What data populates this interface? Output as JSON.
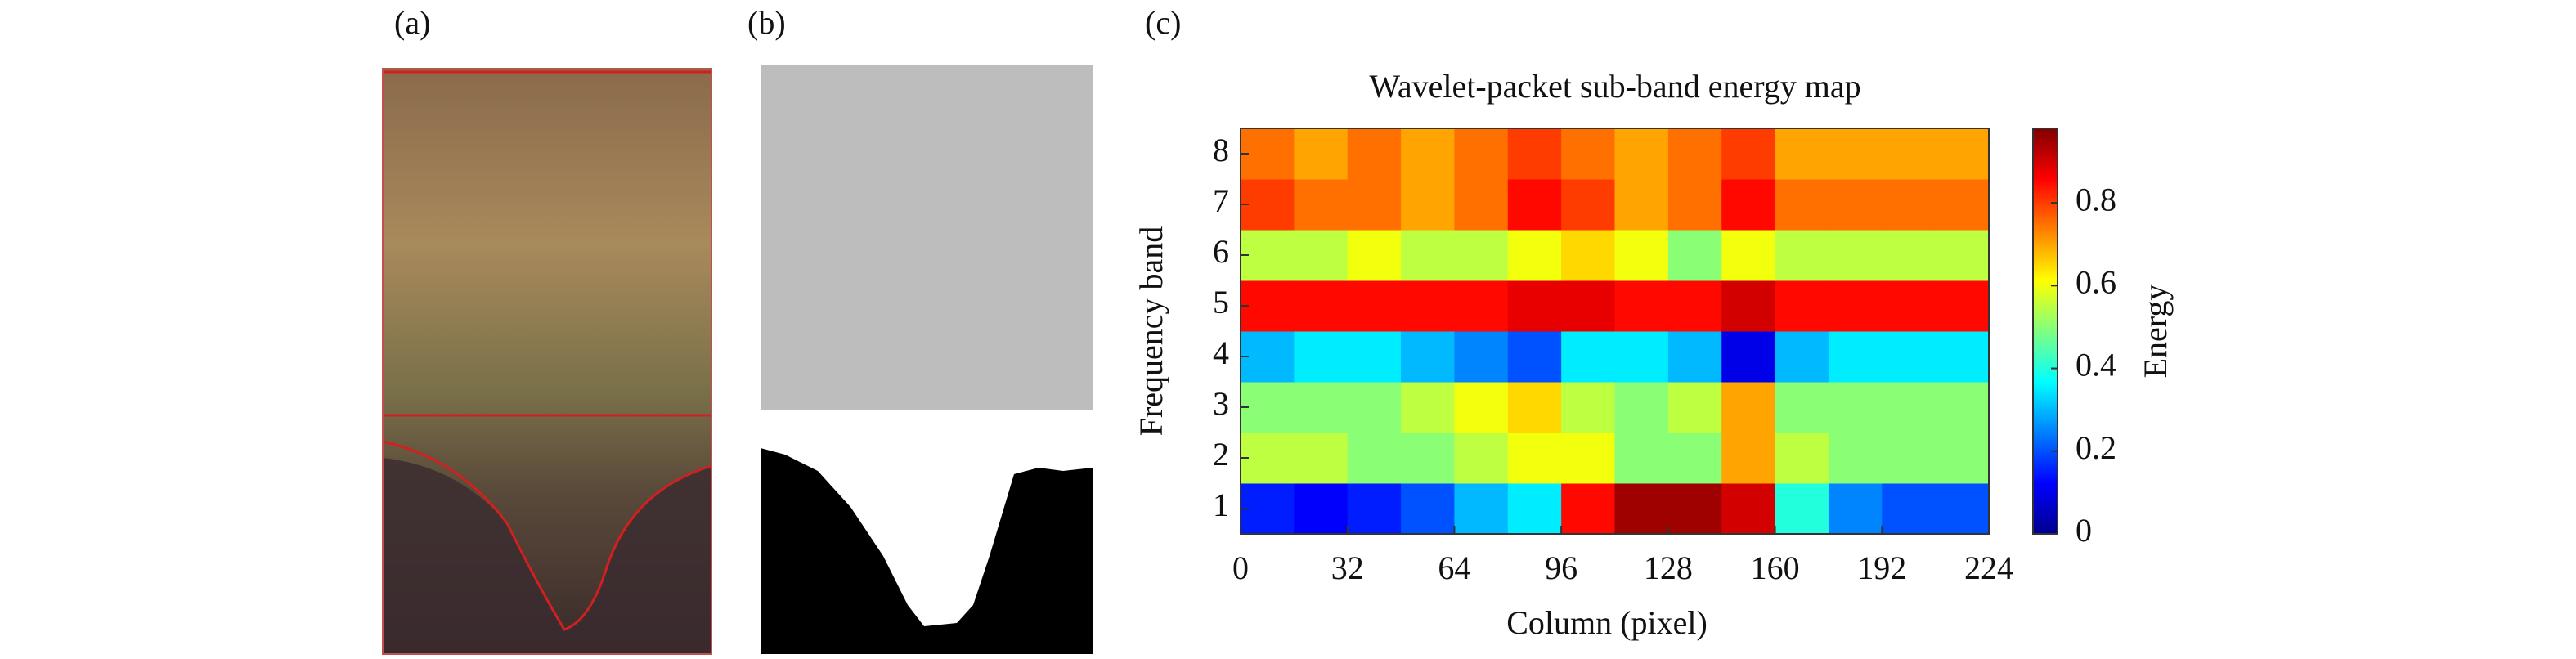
{
  "panel_labels": [
    "(a)",
    "(b)",
    "(c)"
  ],
  "chart_data": {
    "type": "heatmap",
    "title": "Wavelet-packet sub-band energy map",
    "x_label": "Column (pixel)",
    "y_label": "Frequency band",
    "colorbar_label": "Energy",
    "x": [
      8,
      24,
      40,
      56,
      72,
      88,
      104,
      120,
      136,
      152,
      168,
      184,
      200,
      216
    ],
    "y": [
      1,
      2,
      3,
      4,
      5,
      6,
      7,
      8
    ],
    "z": [
      [
        0.15,
        0.12,
        0.15,
        0.2,
        0.3,
        0.35,
        0.85,
        0.95,
        0.95,
        0.9,
        0.4,
        0.25,
        0.2,
        0.2
      ],
      [
        0.55,
        0.55,
        0.5,
        0.5,
        0.55,
        0.6,
        0.6,
        0.5,
        0.5,
        0.7,
        0.55,
        0.5,
        0.5,
        0.5
      ],
      [
        0.5,
        0.5,
        0.5,
        0.55,
        0.6,
        0.65,
        0.55,
        0.5,
        0.55,
        0.7,
        0.5,
        0.5,
        0.5,
        0.5
      ],
      [
        0.3,
        0.35,
        0.35,
        0.3,
        0.25,
        0.2,
        0.35,
        0.35,
        0.3,
        0.1,
        0.3,
        0.35,
        0.35,
        0.35
      ],
      [
        0.85,
        0.85,
        0.85,
        0.85,
        0.85,
        0.88,
        0.88,
        0.85,
        0.85,
        0.9,
        0.85,
        0.85,
        0.85,
        0.85
      ],
      [
        0.55,
        0.55,
        0.6,
        0.55,
        0.55,
        0.6,
        0.65,
        0.6,
        0.5,
        0.6,
        0.55,
        0.55,
        0.55,
        0.55
      ],
      [
        0.8,
        0.75,
        0.75,
        0.7,
        0.75,
        0.85,
        0.8,
        0.7,
        0.75,
        0.85,
        0.75,
        0.75,
        0.75,
        0.75
      ],
      [
        0.75,
        0.7,
        0.75,
        0.7,
        0.75,
        0.8,
        0.75,
        0.7,
        0.75,
        0.8,
        0.7,
        0.7,
        0.7,
        0.7
      ]
    ],
    "xlim": [
      0,
      224
    ],
    "xticks": [
      0,
      32,
      64,
      96,
      128,
      160,
      192,
      224
    ],
    "ylim": [
      0.5,
      8.5
    ],
    "yticks": [
      1,
      2,
      3,
      4,
      5,
      6,
      7,
      8
    ],
    "zlim": [
      0,
      0.98
    ],
    "zticks": [
      0,
      0.2,
      0.4,
      0.6,
      0.8
    ],
    "colormap": "jet"
  }
}
